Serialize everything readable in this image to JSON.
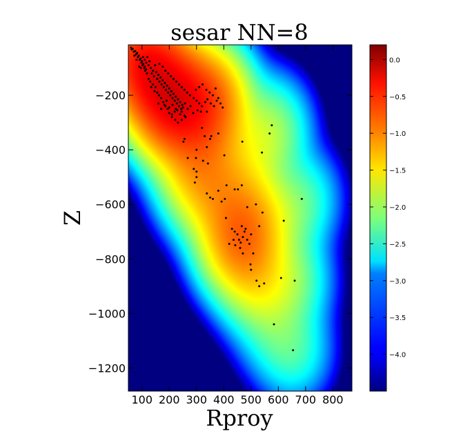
{
  "chart_data": {
    "type": "heatmap",
    "title": "sesar NN=8",
    "xlabel": "Rproy",
    "ylabel": "Z",
    "xlim": [
      50,
      870
    ],
    "ylim": [
      -1285,
      -15
    ],
    "x_ticks": [
      100,
      200,
      300,
      400,
      500,
      600,
      700,
      800
    ],
    "x_tick_labels": [
      "100",
      "200",
      "300",
      "400",
      "500",
      "600",
      "700",
      "800"
    ],
    "y_ticks": [
      -200,
      -400,
      -600,
      -800,
      -1000,
      -1200
    ],
    "y_tick_labels": [
      "−200",
      "−400",
      "−600",
      "−800",
      "−1000",
      "−1200"
    ],
    "colorbar": {
      "colormap": "jet",
      "range": [
        -4.5,
        0.2
      ],
      "ticks": [
        0.0,
        -0.5,
        -1.0,
        -1.5,
        -2.0,
        -2.5,
        -3.0,
        -3.5,
        -4.0
      ],
      "tick_labels": [
        "0.0",
        "−0.5",
        "−1.0",
        "−1.5",
        "−2.0",
        "−2.5",
        "−3.0",
        "−3.5",
        "−4.0"
      ]
    },
    "points": [
      [
        60,
        -25
      ],
      [
        62,
        -32
      ],
      [
        66,
        -30
      ],
      [
        70,
        -40
      ],
      [
        75,
        -38
      ],
      [
        78,
        -50
      ],
      [
        82,
        -45
      ],
      [
        85,
        -60
      ],
      [
        88,
        -55
      ],
      [
        92,
        -70
      ],
      [
        95,
        -65
      ],
      [
        98,
        -80
      ],
      [
        100,
        -75
      ],
      [
        102,
        -90
      ],
      [
        105,
        -85
      ],
      [
        108,
        -100
      ],
      [
        110,
        -95
      ],
      [
        112,
        -110
      ],
      [
        115,
        -105
      ],
      [
        118,
        -120
      ],
      [
        72,
        -55
      ],
      [
        80,
        -70
      ],
      [
        90,
        -95
      ],
      [
        96,
        -100
      ],
      [
        104,
        -60
      ],
      [
        110,
        -70
      ],
      [
        116,
        -80
      ],
      [
        120,
        -60
      ],
      [
        124,
        -90
      ],
      [
        128,
        -75
      ],
      [
        132,
        -100
      ],
      [
        136,
        -120
      ],
      [
        140,
        -110
      ],
      [
        144,
        -130
      ],
      [
        148,
        -90
      ],
      [
        152,
        -115
      ],
      [
        156,
        -140
      ],
      [
        160,
        -125
      ],
      [
        164,
        -150
      ],
      [
        168,
        -135
      ],
      [
        172,
        -160
      ],
      [
        176,
        -145
      ],
      [
        180,
        -170
      ],
      [
        184,
        -155
      ],
      [
        188,
        -180
      ],
      [
        192,
        -165
      ],
      [
        196,
        -190
      ],
      [
        200,
        -175
      ],
      [
        204,
        -200
      ],
      [
        208,
        -185
      ],
      [
        212,
        -210
      ],
      [
        216,
        -195
      ],
      [
        220,
        -220
      ],
      [
        224,
        -205
      ],
      [
        228,
        -230
      ],
      [
        232,
        -215
      ],
      [
        236,
        -240
      ],
      [
        240,
        -225
      ],
      [
        244,
        -250
      ],
      [
        248,
        -235
      ],
      [
        150,
        -170
      ],
      [
        156,
        -190
      ],
      [
        162,
        -200
      ],
      [
        170,
        -210
      ],
      [
        178,
        -225
      ],
      [
        186,
        -240
      ],
      [
        194,
        -250
      ],
      [
        200,
        -265
      ],
      [
        210,
        -270
      ],
      [
        220,
        -260
      ],
      [
        230,
        -255
      ],
      [
        240,
        -270
      ],
      [
        250,
        -245
      ],
      [
        258,
        -230
      ],
      [
        164,
        -85
      ],
      [
        176,
        -95
      ],
      [
        186,
        -110
      ],
      [
        196,
        -120
      ],
      [
        206,
        -130
      ],
      [
        216,
        -140
      ],
      [
        226,
        -150
      ],
      [
        236,
        -160
      ],
      [
        246,
        -170
      ],
      [
        256,
        -180
      ],
      [
        266,
        -190
      ],
      [
        276,
        -200
      ],
      [
        290,
        -210
      ],
      [
        300,
        -220
      ],
      [
        310,
        -230
      ],
      [
        320,
        -240
      ],
      [
        332,
        -225
      ],
      [
        340,
        -215
      ],
      [
        352,
        -230
      ],
      [
        364,
        -240
      ],
      [
        374,
        -220
      ],
      [
        380,
        -210
      ],
      [
        388,
        -230
      ],
      [
        396,
        -245
      ],
      [
        298,
        -180
      ],
      [
        310,
        -170
      ],
      [
        322,
        -160
      ],
      [
        336,
        -180
      ],
      [
        348,
        -190
      ],
      [
        360,
        -200
      ],
      [
        370,
        -175
      ],
      [
        232,
        -300
      ],
      [
        246,
        -290
      ],
      [
        260,
        -280
      ],
      [
        210,
        -280
      ],
      [
        222,
        -290
      ],
      [
        190,
        -220
      ],
      [
        182,
        -235
      ],
      [
        170,
        -250
      ],
      [
        160,
        -230
      ],
      [
        140,
        -160
      ],
      [
        130,
        -150
      ],
      [
        124,
        -140
      ],
      [
        134,
        -170
      ],
      [
        146,
        -185
      ],
      [
        200,
        -245
      ],
      [
        212,
        -235
      ],
      [
        224,
        -250
      ],
      [
        246,
        -260
      ],
      [
        256,
        -275
      ],
      [
        268,
        -250
      ],
      [
        278,
        -240
      ],
      [
        288,
        -265
      ],
      [
        304,
        -255
      ],
      [
        316,
        -260
      ],
      [
        338,
        -260
      ],
      [
        252,
        -370
      ],
      [
        256,
        -360
      ],
      [
        320,
        -320
      ],
      [
        330,
        -350
      ],
      [
        350,
        -360
      ],
      [
        354,
        -350
      ],
      [
        380,
        -340
      ],
      [
        338,
        -390
      ],
      [
        300,
        -400
      ],
      [
        468,
        -370
      ],
      [
        402,
        -420
      ],
      [
        540,
        -410
      ],
      [
        568,
        -340
      ],
      [
        576,
        -310
      ],
      [
        268,
        -430
      ],
      [
        298,
        -430
      ],
      [
        290,
        -470
      ],
      [
        300,
        -480
      ],
      [
        300,
        -500
      ],
      [
        294,
        -520
      ],
      [
        324,
        -440
      ],
      [
        342,
        -450
      ],
      [
        338,
        -560
      ],
      [
        350,
        -575
      ],
      [
        360,
        -580
      ],
      [
        380,
        -550
      ],
      [
        392,
        -590
      ],
      [
        404,
        -580
      ],
      [
        410,
        -530
      ],
      [
        440,
        -545
      ],
      [
        452,
        -545
      ],
      [
        466,
        -530
      ],
      [
        486,
        -610
      ],
      [
        518,
        -600
      ],
      [
        542,
        -630
      ],
      [
        620,
        -660
      ],
      [
        686,
        -580
      ],
      [
        408,
        -650
      ],
      [
        430,
        -690
      ],
      [
        440,
        -700
      ],
      [
        450,
        -710
      ],
      [
        456,
        -730
      ],
      [
        462,
        -740
      ],
      [
        470,
        -720
      ],
      [
        476,
        -700
      ],
      [
        486,
        -730
      ],
      [
        494,
        -745
      ],
      [
        500,
        -710
      ],
      [
        466,
        -680
      ],
      [
        442,
        -750
      ],
      [
        470,
        -780
      ],
      [
        508,
        -780
      ],
      [
        530,
        -680
      ],
      [
        498,
        -820
      ],
      [
        500,
        -840
      ],
      [
        520,
        -880
      ],
      [
        530,
        -900
      ],
      [
        548,
        -890
      ],
      [
        610,
        -870
      ],
      [
        660,
        -880
      ],
      [
        584,
        -1040
      ],
      [
        654,
        -1135
      ],
      [
        420,
        -745
      ],
      [
        436,
        -730
      ],
      [
        460,
        -760
      ],
      [
        480,
        -690
      ]
    ]
  }
}
